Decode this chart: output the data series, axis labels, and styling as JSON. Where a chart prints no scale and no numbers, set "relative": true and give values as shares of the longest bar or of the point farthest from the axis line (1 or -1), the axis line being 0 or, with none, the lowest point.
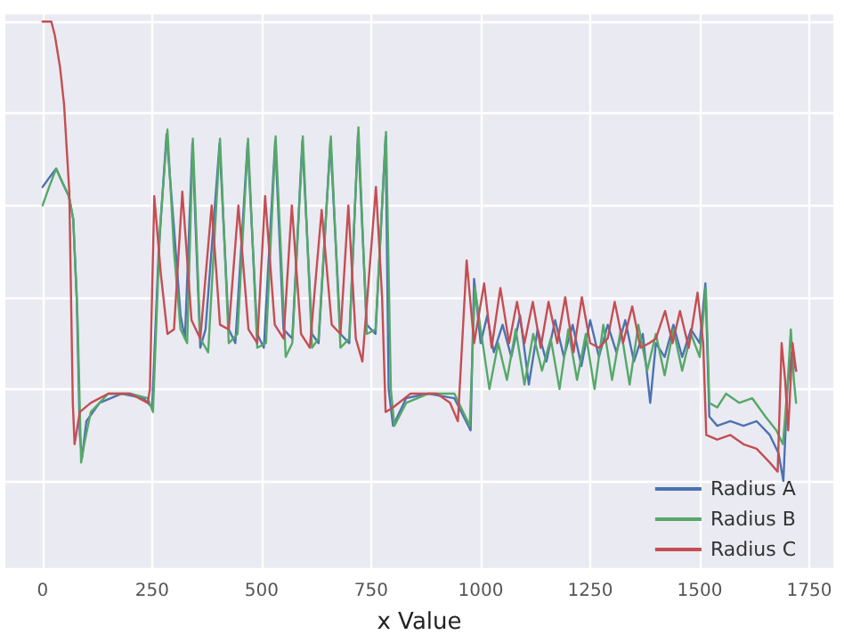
{
  "chart_data": {
    "type": "line",
    "xlabel": "x Value",
    "relative": true,
    "xlim": [
      -85,
      1805
    ],
    "xticks": [
      0,
      250,
      500,
      750,
      1000,
      1250,
      1500,
      1750
    ],
    "grid": true,
    "legend": "bottom right",
    "series": [
      {
        "name": "Radius A",
        "color": "#4c72b0",
        "x": [
          0,
          15,
          31,
          45,
          60,
          70,
          78,
          85,
          90,
          100,
          130,
          180,
          230,
          250,
          265,
          283,
          300,
          315,
          325,
          342,
          360,
          372,
          404,
          425,
          440,
          468,
          490,
          505,
          531,
          550,
          570,
          593,
          615,
          630,
          657,
          680,
          700,
          720,
          740,
          760,
          783,
          790,
          800,
          830,
          880,
          940,
          977,
          985,
          1000,
          1015,
          1030,
          1050,
          1070,
          1090,
          1110,
          1130,
          1150,
          1170,
          1190,
          1210,
          1230,
          1250,
          1270,
          1290,
          1310,
          1330,
          1350,
          1370,
          1387,
          1400,
          1420,
          1440,
          1460,
          1480,
          1500,
          1513,
          1522,
          1540,
          1570,
          1600,
          1630,
          1660,
          1680,
          1691,
          1700,
          1710,
          1720
        ],
        "values": [
          0.64,
          0.66,
          0.68,
          0.65,
          0.62,
          0.57,
          0.4,
          0.1,
          0.05,
          0.13,
          0.17,
          0.19,
          0.18,
          0.16,
          0.5,
          0.755,
          0.55,
          0.36,
          0.31,
          0.735,
          0.29,
          0.33,
          0.735,
          0.33,
          0.3,
          0.735,
          0.32,
          0.29,
          0.74,
          0.33,
          0.31,
          0.74,
          0.32,
          0.3,
          0.74,
          0.32,
          0.3,
          0.755,
          0.34,
          0.32,
          0.75,
          0.2,
          0.12,
          0.18,
          0.19,
          0.18,
          0.11,
          0.44,
          0.3,
          0.36,
          0.28,
          0.34,
          0.27,
          0.36,
          0.21,
          0.33,
          0.26,
          0.35,
          0.27,
          0.34,
          0.25,
          0.35,
          0.27,
          0.34,
          0.28,
          0.35,
          0.26,
          0.32,
          0.17,
          0.3,
          0.27,
          0.34,
          0.27,
          0.33,
          0.3,
          0.43,
          0.14,
          0.12,
          0.13,
          0.12,
          0.13,
          0.1,
          0.06,
          0,
          0.2,
          0.28,
          0.24
        ]
      },
      {
        "name": "Radius B",
        "color": "#55a868",
        "x": [
          0,
          15,
          31,
          45,
          60,
          70,
          80,
          88,
          95,
          110,
          150,
          200,
          240,
          252,
          268,
          285,
          300,
          315,
          330,
          343,
          360,
          378,
          405,
          425,
          445,
          469,
          490,
          510,
          532,
          555,
          570,
          594,
          615,
          630,
          658,
          680,
          700,
          721,
          740,
          760,
          784,
          795,
          803,
          830,
          880,
          940,
          975,
          987,
          1000,
          1020,
          1040,
          1060,
          1080,
          1100,
          1120,
          1140,
          1160,
          1180,
          1200,
          1220,
          1240,
          1260,
          1280,
          1300,
          1320,
          1340,
          1360,
          1380,
          1400,
          1420,
          1440,
          1460,
          1480,
          1500,
          1514,
          1522,
          1540,
          1560,
          1590,
          1620,
          1650,
          1675,
          1690,
          1700,
          1708,
          1715,
          1720
        ],
        "values": [
          0.6,
          0.64,
          0.68,
          0.65,
          0.62,
          0.57,
          0.35,
          0.04,
          0.08,
          0.15,
          0.19,
          0.19,
          0.18,
          0.15,
          0.55,
          0.765,
          0.5,
          0.33,
          0.3,
          0.745,
          0.31,
          0.28,
          0.745,
          0.3,
          0.32,
          0.745,
          0.29,
          0.3,
          0.75,
          0.27,
          0.3,
          0.75,
          0.29,
          0.31,
          0.75,
          0.29,
          0.31,
          0.77,
          0.32,
          0.33,
          0.76,
          0.2,
          0.12,
          0.17,
          0.19,
          0.19,
          0.12,
          0.42,
          0.33,
          0.2,
          0.3,
          0.22,
          0.33,
          0.21,
          0.32,
          0.24,
          0.31,
          0.2,
          0.33,
          0.22,
          0.32,
          0.2,
          0.34,
          0.22,
          0.33,
          0.21,
          0.34,
          0.24,
          0.32,
          0.23,
          0.33,
          0.24,
          0.32,
          0.27,
          0.42,
          0.17,
          0.16,
          0.19,
          0.17,
          0.18,
          0.14,
          0.11,
          0.08,
          0.2,
          0.33,
          0.22,
          0.17
        ]
      },
      {
        "name": "Radius C",
        "color": "#c44e52",
        "x": [
          0,
          20,
          28,
          40,
          49,
          61,
          69,
          73,
          85,
          110,
          150,
          200,
          240,
          245,
          255,
          270,
          285,
          300,
          319,
          340,
          360,
          386,
          405,
          425,
          447,
          470,
          490,
          508,
          530,
          550,
          569,
          590,
          610,
          637,
          660,
          680,
          698,
          715,
          730,
          761,
          775,
          783,
          800,
          840,
          900,
          930,
          948,
          968,
          985,
          1008,
          1025,
          1045,
          1065,
          1083,
          1100,
          1119,
          1137,
          1155,
          1175,
          1193,
          1212,
          1231,
          1250,
          1270,
          1290,
          1306,
          1325,
          1346,
          1365,
          1385,
          1400,
          1421,
          1438,
          1455,
          1475,
          1495,
          1508,
          1515,
          1540,
          1570,
          1600,
          1630,
          1660,
          1678,
          1687,
          1695,
          1702,
          1712,
          1720
        ],
        "values": [
          1.0,
          1.0,
          0.97,
          0.9,
          0.82,
          0.63,
          0.17,
          0.08,
          0.15,
          0.17,
          0.19,
          0.19,
          0.17,
          0.2,
          0.62,
          0.45,
          0.32,
          0.33,
          0.63,
          0.35,
          0.31,
          0.6,
          0.34,
          0.33,
          0.6,
          0.33,
          0.3,
          0.62,
          0.34,
          0.31,
          0.6,
          0.32,
          0.29,
          0.59,
          0.34,
          0.32,
          0.6,
          0.31,
          0.26,
          0.64,
          0.4,
          0.15,
          0.16,
          0.19,
          0.19,
          0.17,
          0.13,
          0.48,
          0.3,
          0.43,
          0.29,
          0.42,
          0.3,
          0.39,
          0.3,
          0.39,
          0.29,
          0.39,
          0.3,
          0.4,
          0.28,
          0.4,
          0.3,
          0.29,
          0.31,
          0.39,
          0.3,
          0.38,
          0.29,
          0.3,
          0.31,
          0.37,
          0.3,
          0.37,
          0.29,
          0.41,
          0.3,
          0.1,
          0.09,
          0.1,
          0.08,
          0.07,
          0.04,
          0.02,
          0.3,
          0.22,
          0.11,
          0.3,
          0.24
        ]
      }
    ]
  }
}
